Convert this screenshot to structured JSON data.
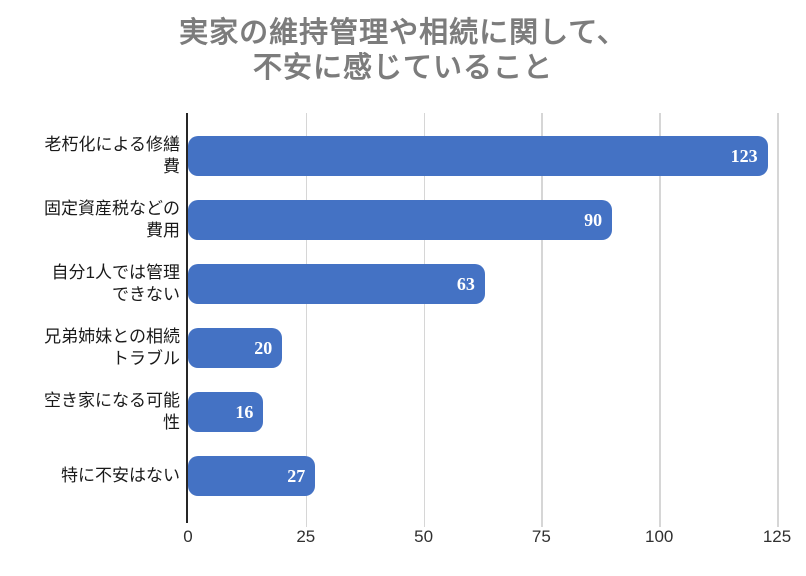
{
  "chart_data": {
    "type": "bar",
    "orientation": "horizontal",
    "title": "実家の維持管理や相続に関して、不安に感じていること",
    "title_lines": [
      "実家の維持管理や相続に関して、",
      "不安に感じていること"
    ],
    "categories": [
      "老朽化による修繕費",
      "固定資産税などの費用",
      "自分1人では管理できない",
      "兄弟姉妹との相続トラブル",
      "空き家になる可能性",
      "特に不安はない"
    ],
    "categories_display": [
      "老朽化による修繕\n費",
      "固定資産税などの\n費用",
      "自分1人では管理\nできない",
      "兄弟姉妹との相続\nトラブル",
      "空き家になる可能\n性",
      "特に不安はない"
    ],
    "values": [
      123,
      90,
      63,
      20,
      16,
      27
    ],
    "xlabel": "",
    "ylabel": "",
    "xlim": [
      0,
      125
    ],
    "xticks": [
      0,
      25,
      50,
      75,
      100,
      125
    ],
    "grid": true,
    "legend": "none",
    "colors": {
      "bar": "#4472C4",
      "value_label": "#FFFFFF",
      "title": "#7C7C7C",
      "axis_line": "#262626",
      "gridline": "#D6D6D6",
      "tick_label": "#303030",
      "category_label": "#1A1A1A",
      "background": "#FFFFFF"
    }
  }
}
